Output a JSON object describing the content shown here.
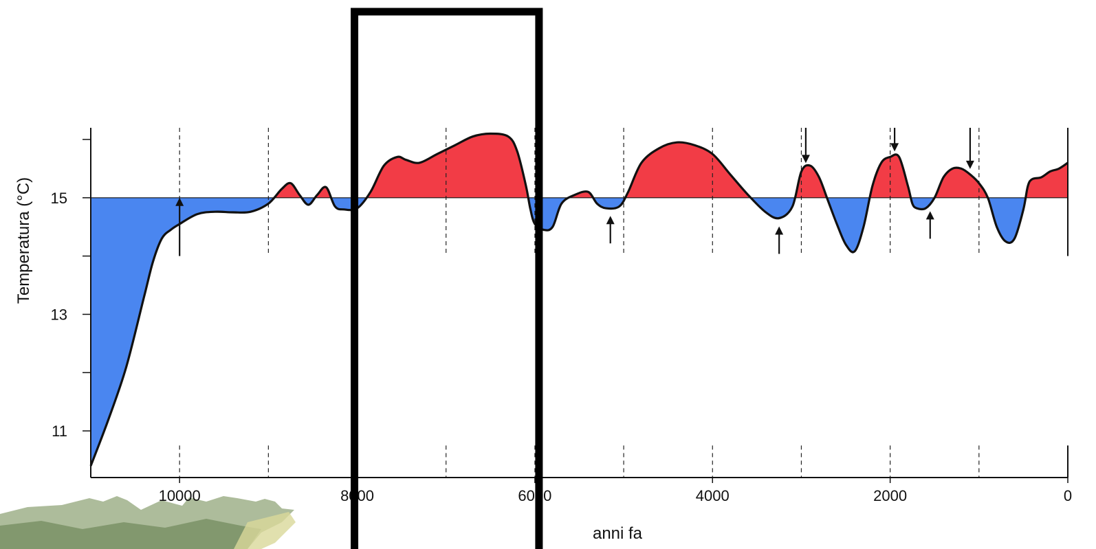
{
  "chart_data": {
    "type": "area",
    "title": "",
    "xlabel": "anni fa",
    "ylabel": "Temperatura (°C)",
    "x_reversed": true,
    "xlim": [
      11000,
      0
    ],
    "ylim": [
      10.2,
      16.2
    ],
    "baseline": 15,
    "x_ticks": [
      10000,
      8000,
      6000,
      4000,
      2000,
      0
    ],
    "x_tick_labels": [
      "10000",
      "8000",
      "6000",
      "4000",
      "2000",
      "0"
    ],
    "y_ticks": [
      11,
      13,
      15
    ],
    "y_tick_labels": [
      "11",
      "13",
      "15"
    ],
    "y_minor_ticks": [
      11,
      12,
      13,
      14,
      15,
      16
    ],
    "gridlines_x": [
      10000,
      9000,
      8000,
      7000,
      6000,
      5000,
      4000,
      3000,
      2000,
      1000
    ],
    "grid": "dashed vertical",
    "colors": {
      "above_baseline": "#f23c46",
      "below_baseline": "#4a86f0",
      "line": "#111111",
      "highlight_box": "#000000"
    },
    "series": [
      {
        "x": [
          11000,
          10800,
          10600,
          10400,
          10300,
          10200,
          10100,
          10000,
          9800,
          9600,
          9400,
          9200,
          9000,
          8850,
          8750,
          8650,
          8550,
          8450,
          8350,
          8250,
          8150,
          8000,
          7850,
          7700,
          7550,
          7450,
          7300,
          7100,
          6900,
          6700,
          6500,
          6300,
          6200,
          6100,
          6050,
          6000,
          5900,
          5800,
          5700,
          5550,
          5400,
          5300,
          5200,
          5050,
          4950,
          4800,
          4600,
          4400,
          4200,
          4000,
          3800,
          3600,
          3400,
          3250,
          3100,
          3000,
          2900,
          2800,
          2700,
          2600,
          2500,
          2400,
          2300,
          2200,
          2100,
          2000,
          1900,
          1800,
          1750,
          1700,
          1600,
          1500,
          1400,
          1300,
          1200,
          1100,
          1000,
          900,
          800,
          700,
          600,
          500,
          450,
          400,
          300,
          200,
          100,
          0
        ],
        "y": [
          10.4,
          11.2,
          12.1,
          13.3,
          13.9,
          14.3,
          14.45,
          14.55,
          14.72,
          14.76,
          14.75,
          14.76,
          14.9,
          15.15,
          15.25,
          15.05,
          14.88,
          15.05,
          15.18,
          14.85,
          14.8,
          14.82,
          15.1,
          15.55,
          15.7,
          15.65,
          15.6,
          15.75,
          15.9,
          16.05,
          16.1,
          16.05,
          15.8,
          15.2,
          14.8,
          14.55,
          14.45,
          14.5,
          14.9,
          15.05,
          15.1,
          14.9,
          14.82,
          14.85,
          15.1,
          15.6,
          15.85,
          15.95,
          15.9,
          15.75,
          15.4,
          15.05,
          14.75,
          14.65,
          14.85,
          15.45,
          15.55,
          15.35,
          14.95,
          14.55,
          14.2,
          14.08,
          14.5,
          15.2,
          15.6,
          15.7,
          15.7,
          15.2,
          14.9,
          14.82,
          14.82,
          15.0,
          15.35,
          15.5,
          15.5,
          15.4,
          15.25,
          15.0,
          14.5,
          14.25,
          14.3,
          14.8,
          15.2,
          15.32,
          15.35,
          15.45,
          15.5,
          15.6
        ]
      }
    ],
    "annotations": {
      "up_arrows_at": [
        10000,
        5150,
        3250,
        1550
      ],
      "down_arrows_at": [
        2950,
        1950,
        1100
      ],
      "highlight_range": [
        8000,
        6000
      ]
    }
  }
}
